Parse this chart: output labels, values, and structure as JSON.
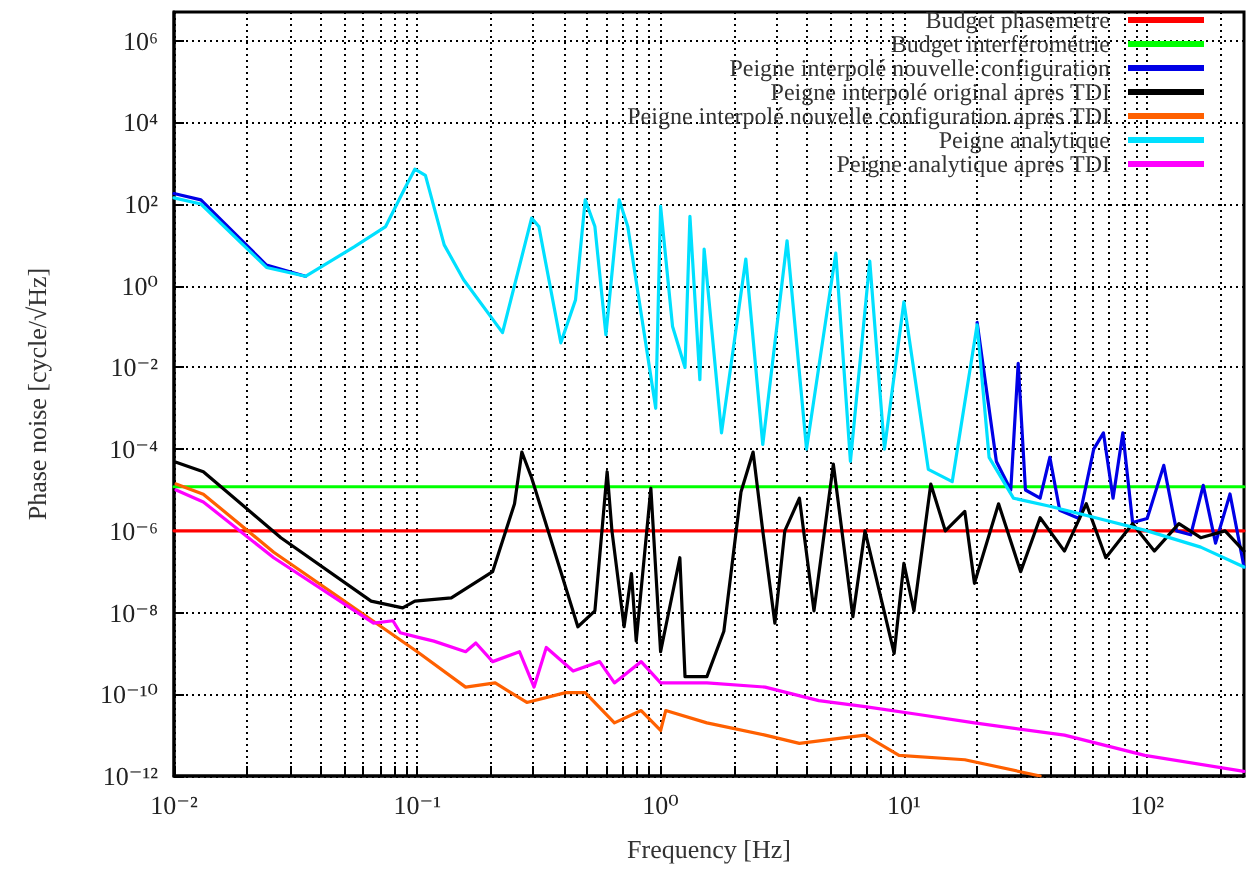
{
  "chart_data": {
    "type": "line",
    "xlabel": "Frequency [Hz]",
    "ylabel": "Phase noise [cycle/√Hz]",
    "log": "xy",
    "grid": true,
    "legend": "top right",
    "marker": "none",
    "line_style": "solid",
    "xlim": [
      0.01,
      250
    ],
    "ylim": [
      1e-12,
      5000000.0
    ],
    "xticks": [
      {
        "value": 0.01,
        "label": "10⁻²"
      },
      {
        "value": 0.02,
        "label": null
      },
      {
        "value": 0.03,
        "label": null
      },
      {
        "value": 0.04,
        "label": null
      },
      {
        "value": 0.05,
        "label": null
      },
      {
        "value": 0.06,
        "label": null
      },
      {
        "value": 0.07,
        "label": null
      },
      {
        "value": 0.08,
        "label": null
      },
      {
        "value": 0.09,
        "label": null
      },
      {
        "value": 0.1,
        "label": "10⁻¹"
      },
      {
        "value": 0.2,
        "label": null
      },
      {
        "value": 0.3,
        "label": null
      },
      {
        "value": 0.4,
        "label": null
      },
      {
        "value": 0.5,
        "label": null
      },
      {
        "value": 0.6,
        "label": null
      },
      {
        "value": 0.7,
        "label": null
      },
      {
        "value": 0.8,
        "label": null
      },
      {
        "value": 0.9,
        "label": null
      },
      {
        "value": 1,
        "label": "10⁰"
      },
      {
        "value": 2,
        "label": null
      },
      {
        "value": 3,
        "label": null
      },
      {
        "value": 4,
        "label": null
      },
      {
        "value": 5,
        "label": null
      },
      {
        "value": 6,
        "label": null
      },
      {
        "value": 7,
        "label": null
      },
      {
        "value": 8,
        "label": null
      },
      {
        "value": 9,
        "label": null
      },
      {
        "value": 10,
        "label": "10¹"
      },
      {
        "value": 20,
        "label": null
      },
      {
        "value": 30,
        "label": null
      },
      {
        "value": 40,
        "label": null
      },
      {
        "value": 50,
        "label": null
      },
      {
        "value": 60,
        "label": null
      },
      {
        "value": 70,
        "label": null
      },
      {
        "value": 80,
        "label": null
      },
      {
        "value": 90,
        "label": null
      },
      {
        "value": 100,
        "label": "10²"
      },
      {
        "value": 200,
        "label": null
      }
    ],
    "yticks": [
      {
        "value": 1e-12,
        "label": "10⁻¹²"
      },
      {
        "value": 1e-10,
        "label": "10⁻¹⁰"
      },
      {
        "value": 1e-08,
        "label": "10⁻⁸"
      },
      {
        "value": 1e-06,
        "label": "10⁻⁶"
      },
      {
        "value": 0.0001,
        "label": "10⁻⁴"
      },
      {
        "value": 0.01,
        "label": "10⁻²"
      },
      {
        "value": 1,
        "label": "10⁰"
      },
      {
        "value": 100,
        "label": "10²"
      },
      {
        "value": 10000,
        "label": "10⁴"
      },
      {
        "value": 1000000,
        "label": "10⁶"
      }
    ],
    "series": [
      {
        "name": "Budget phasemetre",
        "color": "#ff0000",
        "x": [
          0.01,
          250
        ],
        "values": [
          1e-06,
          1e-06
        ]
      },
      {
        "name": "Budget interférométrie",
        "color": "#00ff00",
        "x": [
          0.01,
          250
        ],
        "values": [
          1.2e-05,
          1.2e-05
        ]
      },
      {
        "name": "Peigne interpolé nouvelle configuration",
        "color": "#0000e6",
        "x": [
          0.01,
          0.0129,
          0.024,
          0.0347,
          0.055,
          0.0741,
          0.0891,
          0.0977,
          0.108,
          0.129,
          0.155,
          0.224,
          0.295,
          0.316,
          0.389,
          0.447,
          0.49,
          0.537,
          0.596,
          0.676,
          0.733,
          0.955,
          1,
          1.12,
          1.26,
          1.32,
          1.45,
          1.51,
          1.78,
          2.24,
          2.63,
          3.31,
          3.98,
          5.25,
          6.03,
          7.24,
          8.32,
          10,
          12.6,
          15.8,
          20,
          24,
          27.5,
          29.5,
          31.6,
          36.3,
          39.8,
          43.7,
          52.5,
          60.3,
          66.1,
          72.4,
          79.4,
          87.1,
          100,
          117,
          132,
          151,
          170,
          191,
          219,
          250
        ],
        "values": [
          180,
          126,
          3.2,
          1.7,
          null,
          null,
          null,
          null,
          null,
          null,
          null,
          null,
          null,
          null,
          null,
          null,
          null,
          null,
          null,
          null,
          null,
          null,
          null,
          null,
          null,
          null,
          null,
          null,
          null,
          null,
          null,
          null,
          null,
          null,
          null,
          null,
          null,
          null,
          null,
          null,
          0.126,
          5e-05,
          1e-05,
          0.0126,
          1e-05,
          6.3e-06,
          6.3e-05,
          3.2e-06,
          2e-06,
          0.0001,
          0.00025,
          6.3e-06,
          0.00025,
          1.6e-06,
          2e-06,
          4e-05,
          1e-06,
          8e-07,
          1.3e-05,
          5e-07,
          8e-06,
          1.3e-07
        ]
      },
      {
        "name": "Peigne interpolé original apres TDI",
        "color": "#000000",
        "x": [
          0.0102,
          0.0132,
          0.0275,
          0.0646,
          0.0871,
          0.0977,
          0.138,
          0.204,
          0.251,
          0.269,
          0.295,
          0.389,
          0.457,
          0.537,
          0.603,
          0.631,
          0.708,
          0.759,
          0.794,
          0.912,
          1,
          1.2,
          1.26,
          1.55,
          1.82,
          2.14,
          2.4,
          2.63,
          2.95,
          3.24,
          3.72,
          4.27,
          5.13,
          6.17,
          6.92,
          9.12,
          10,
          11,
          12.9,
          14.8,
          17.8,
          19.5,
          24.5,
          30.2,
          36.3,
          45.7,
          56.2,
          67.6,
          87.1,
          107,
          135,
          166,
          209,
          250
        ],
        "values": [
          4.8e-05,
          2.8e-05,
          6.8e-07,
          1.9e-08,
          1.3e-08,
          1.9e-08,
          2.3e-08,
          1e-07,
          4.6e-06,
          8.5e-05,
          2e-05,
          1e-07,
          4.5e-09,
          1.1e-08,
          2.8e-05,
          1e-06,
          4.5e-09,
          9e-08,
          2e-09,
          1.1e-05,
          1.1e-09,
          2.2e-07,
          2.7e-10,
          2.7e-10,
          3.5e-09,
          8.9e-06,
          8.5e-05,
          1e-06,
          5.5e-09,
          1e-06,
          6.3e-06,
          1.1e-08,
          4.3e-05,
          7.9e-09,
          1e-06,
          1e-09,
          1.6e-07,
          1.1e-08,
          1.4e-05,
          1e-06,
          3e-06,
          5.2e-08,
          4.6e-06,
          1e-07,
          2.1e-06,
          3.2e-07,
          4.6e-06,
          2.2e-07,
          1.5e-06,
          3.2e-07,
          1.5e-06,
          6.8e-07,
          1e-06,
          3.2e-07
        ]
      },
      {
        "name": "Peigne interpolé nouvelle configuration apres TDI",
        "color": "#ff6000",
        "x": [
          0.0102,
          0.0132,
          0.0257,
          0.0457,
          0.1,
          0.158,
          0.209,
          0.282,
          0.407,
          0.49,
          0.646,
          0.832,
          1,
          1.05,
          1.55,
          2.69,
          3.72,
          6.92,
          9.55,
          17.8,
          36.3
        ],
        "values": [
          1.4e-05,
          7.9e-06,
          3e-07,
          2.8e-08,
          1.1e-09,
          1.5e-10,
          1.9e-10,
          6.3e-11,
          1.1e-10,
          1.1e-10,
          2e-11,
          4e-11,
          1.3e-11,
          4e-11,
          2e-11,
          1e-11,
          6.3e-12,
          1e-11,
          3.2e-12,
          2.5e-12,
          1e-12
        ]
      },
      {
        "name": "Peigne analytique",
        "color": "#00e0ff",
        "x": [
          0.01,
          0.0129,
          0.024,
          0.0347,
          0.055,
          0.0741,
          0.0891,
          0.0977,
          0.108,
          0.129,
          0.155,
          0.224,
          0.295,
          0.316,
          0.389,
          0.447,
          0.49,
          0.537,
          0.596,
          0.676,
          0.733,
          0.955,
          1,
          1.12,
          1.26,
          1.32,
          1.45,
          1.51,
          1.78,
          2.24,
          2.63,
          3.31,
          3.98,
          5.25,
          6.03,
          7.24,
          8.32,
          10,
          12.6,
          15.8,
          20,
          22.4,
          28.2,
          39.8,
          63.1,
          100,
          166,
          250
        ],
        "values": [
          141,
          100,
          2.8,
          1.7,
          8.9,
          28,
          250,
          710,
          500,
          10,
          1.4,
          0.071,
          45,
          28,
          0.04,
          0.45,
          126,
          28,
          0.063,
          126,
          28,
          0.001,
          89,
          0.1,
          0.01,
          50,
          0.005,
          7.9,
          0.00025,
          4.5,
          0.00013,
          12.6,
          0.0001,
          6.3,
          5e-05,
          4,
          0.0001,
          0.4,
          3.2e-05,
          1.6e-05,
          0.11,
          6.3e-05,
          6.3e-06,
          4e-06,
          2e-06,
          1e-06,
          4e-07,
          1.3e-07
        ]
      },
      {
        "name": "Peigne analytique apres TDI",
        "color": "#ff00ff",
        "x": [
          0.0102,
          0.0132,
          0.0257,
          0.0661,
          0.0794,
          0.0851,
          0.1,
          0.117,
          0.158,
          0.174,
          0.204,
          0.263,
          0.302,
          0.339,
          0.437,
          0.562,
          0.646,
          0.832,
          1,
          1.55,
          2.69,
          4.47,
          6.92,
          11.5,
          19.5,
          45.7,
          97.7,
          250
        ],
        "values": [
          1e-05,
          5.1e-06,
          2.2e-07,
          5.5e-09,
          6.3e-09,
          3.2e-09,
          2.5e-09,
          2e-09,
          1.1e-09,
          1.8e-09,
          6.3e-10,
          1.1e-09,
          1.5e-10,
          1.4e-09,
          3.7e-10,
          6.3e-10,
          1.9e-10,
          6.3e-10,
          1.9e-10,
          1.9e-10,
          1.5e-10,
          7e-11,
          5e-11,
          3.2e-11,
          2e-11,
          1e-11,
          3.2e-12,
          1.3e-12
        ]
      }
    ]
  }
}
